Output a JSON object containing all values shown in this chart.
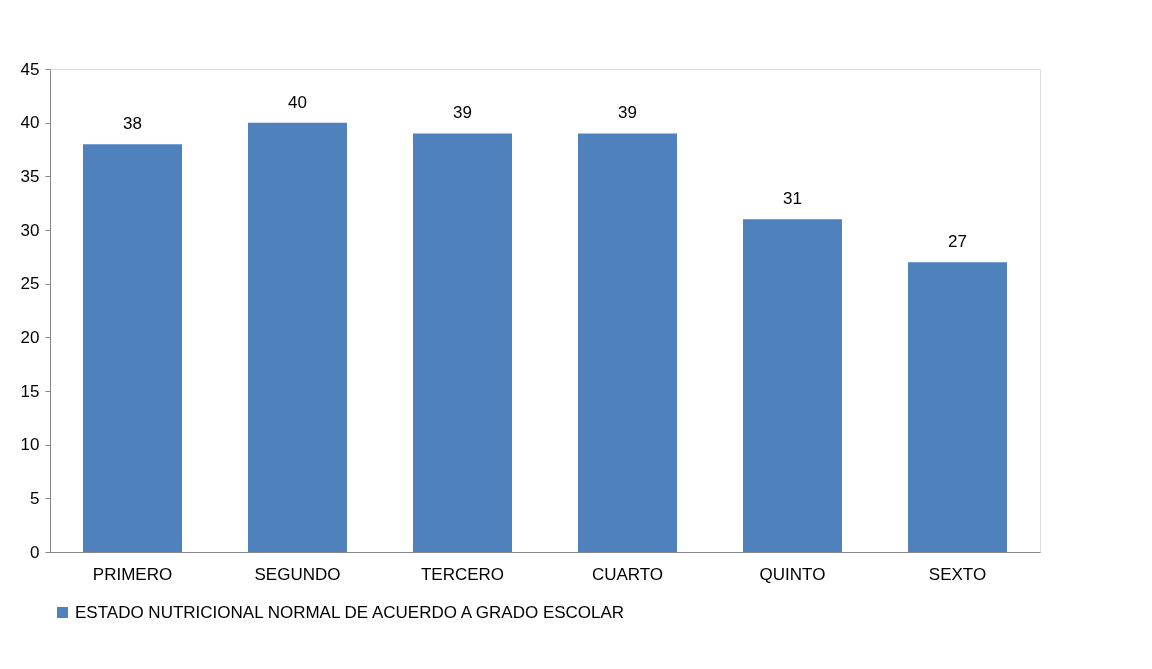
{
  "chart_data": {
    "type": "bar",
    "categories": [
      "PRIMERO",
      "SEGUNDO",
      "TERCERO",
      "CUARTO",
      "QUINTO",
      "SEXTO"
    ],
    "series": [
      {
        "name": "ESTADO NUTRICIONAL NORMAL DE ACUERDO A GRADO ESCOLAR",
        "color": "#4f81bd",
        "values": [
          38,
          40,
          39,
          39,
          31,
          27
        ]
      }
    ],
    "ylim": [
      0,
      45
    ],
    "yticks": [
      0,
      5,
      10,
      15,
      20,
      25,
      30,
      35,
      40,
      45
    ],
    "grid": false,
    "legend": "bottom",
    "data_labels": true
  }
}
